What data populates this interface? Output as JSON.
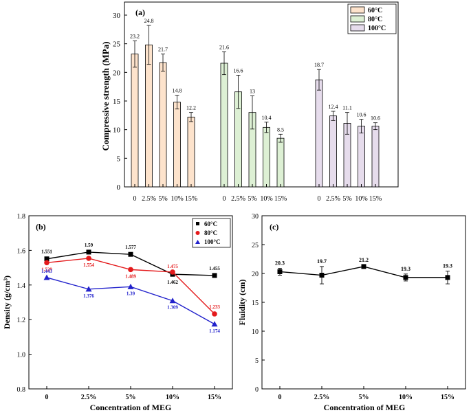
{
  "colors": {
    "c60_fill": "#fde3cc",
    "c80_fill": "#ddf0d4",
    "c100_fill": "#e6dcec",
    "s60": "#000000",
    "s80": "#e41a1c",
    "s100": "#2222cc"
  },
  "chart_data": [
    {
      "type": "bar",
      "panel_label": "(a)",
      "ylabel": "Compressive strength (MPa)",
      "ylim": [
        0,
        30
      ],
      "yticks": [
        "0",
        "5",
        "10",
        "15",
        "20",
        "25",
        "30"
      ],
      "categories": [
        "0",
        "2.5%",
        "5%",
        "10%",
        "15%"
      ],
      "legend": [
        "60°C",
        "80°C",
        "100°C"
      ],
      "groups": [
        {
          "name": "60°C",
          "values": [
            23.2,
            24.8,
            21.7,
            14.8,
            12.2
          ],
          "errors": [
            2.3,
            3.4,
            1.5,
            1.2,
            0.8
          ],
          "labels": [
            "23.2",
            "24.8",
            "21.7",
            "14.8",
            "12.2"
          ]
        },
        {
          "name": "80°C",
          "values": [
            21.6,
            16.6,
            13.0,
            10.4,
            8.5
          ],
          "errors": [
            2.0,
            2.9,
            2.9,
            0.9,
            0.7
          ],
          "labels": [
            "21.6",
            "16.6",
            "13",
            "10.4",
            "8.5"
          ]
        },
        {
          "name": "100°C",
          "values": [
            18.7,
            12.4,
            11.1,
            10.6,
            10.6
          ],
          "errors": [
            1.8,
            0.8,
            1.9,
            1.2,
            0.6
          ],
          "labels": [
            "18.7",
            "12.4",
            "11.1",
            "10.6",
            "10.6"
          ]
        }
      ]
    },
    {
      "type": "line",
      "panel_label": "(b)",
      "ylabel": "Density (g/cm³)",
      "xlabel": "Concentration of MEG",
      "ylim": [
        0.8,
        1.8
      ],
      "yticks": [
        "0.8",
        "1.0",
        "1.2",
        "1.4",
        "1.6",
        "1.8"
      ],
      "categories": [
        "0",
        "2.5%",
        "5%",
        "10%",
        "15%"
      ],
      "series": [
        {
          "name": "60°C",
          "marker": "square",
          "values": [
            1.551,
            1.59,
            1.577,
            1.462,
            1.455
          ],
          "labels": [
            "1.551",
            "1.59",
            "1.577",
            "1.462",
            "1.455"
          ]
        },
        {
          "name": "80°C",
          "marker": "circle",
          "values": [
            1.529,
            1.554,
            1.489,
            1.475,
            1.233
          ],
          "labels": [
            "1.529",
            "1.554",
            "1.489",
            "1.475",
            "1.233"
          ]
        },
        {
          "name": "100°C",
          "marker": "triangle",
          "values": [
            1.443,
            1.376,
            1.39,
            1.309,
            1.174
          ],
          "labels": [
            "1.443",
            "1.376",
            "1.39",
            "1.309",
            "1.174"
          ]
        }
      ]
    },
    {
      "type": "line",
      "panel_label": "(c)",
      "ylabel": "Fluidity (cm)",
      "xlabel": "Concentration of MEG",
      "ylim": [
        0,
        30
      ],
      "yticks": [
        "0",
        "5",
        "10",
        "15",
        "20",
        "25",
        "30"
      ],
      "categories": [
        "0",
        "2.5%",
        "5%",
        "10%",
        "15%"
      ],
      "series": [
        {
          "name": "Fluidity",
          "marker": "square",
          "values": [
            20.3,
            19.7,
            21.2,
            19.3,
            19.3
          ],
          "errors": [
            0.6,
            1.5,
            0.2,
            0.6,
            1.1
          ],
          "labels": [
            "20.3",
            "19.7",
            "21.2",
            "19.3",
            "19.3"
          ]
        }
      ]
    }
  ]
}
